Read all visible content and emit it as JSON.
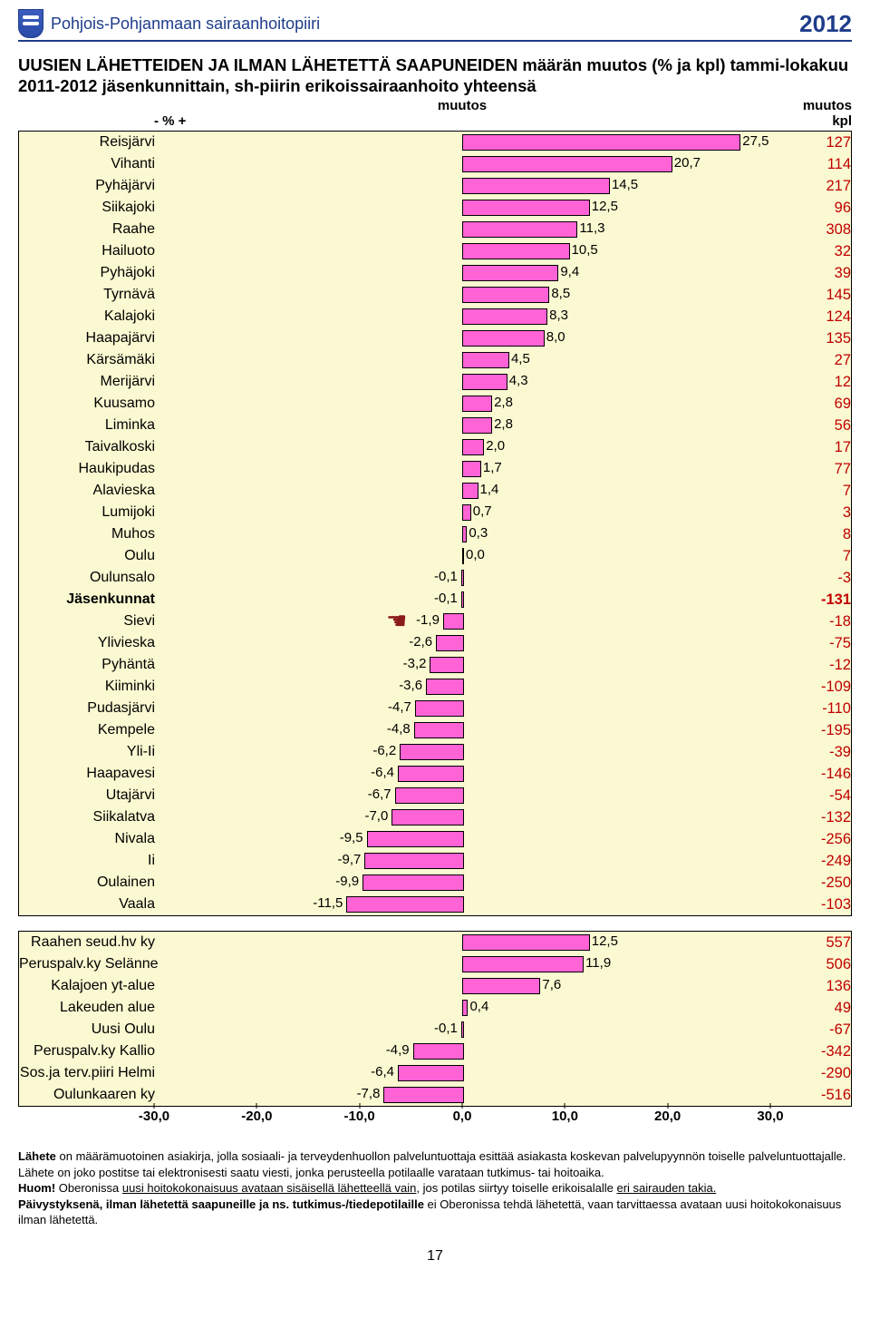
{
  "header": {
    "org": "Pohjois-Pohjanmaan sairaanhoitopiiri",
    "year": "2012"
  },
  "title": "UUSIEN LÄHETTEIDEN JA ILMAN LÄHETETTÄ SAAPUNEIDEN määrän muutos (% ja kpl) tammi-lokakuu 2011-2012 jäsenkunnittain, sh-piirin erikoissairaanhoito yhteensä",
  "columns": {
    "mid": "muutos",
    "pm": "-  %  +",
    "right": "muutos",
    "right2": "kpl"
  },
  "chart": {
    "xmin": -30,
    "xmax": 30,
    "xstep": 10,
    "ticks": [
      "-30,0",
      "-20,0",
      "-10,0",
      "0,0",
      "10,0",
      "20,0",
      "30,0"
    ],
    "bar_color": "#ff63d6",
    "plot_bg": "#fbf9d1",
    "border": "#000000",
    "kpl_color": "#c00000",
    "font_size": 16,
    "hand_row": 22
  },
  "rows": [
    {
      "label": "Reisjärvi",
      "v": 27.5,
      "vl": "27,5",
      "kpl": "127"
    },
    {
      "label": "Vihanti",
      "v": 20.7,
      "vl": "20,7",
      "kpl": "114"
    },
    {
      "label": "Pyhäjärvi",
      "v": 14.5,
      "vl": "14,5",
      "kpl": "217"
    },
    {
      "label": "Siikajoki",
      "v": 12.5,
      "vl": "12,5",
      "kpl": "96"
    },
    {
      "label": "Raahe",
      "v": 11.3,
      "vl": "11,3",
      "kpl": "308"
    },
    {
      "label": "Hailuoto",
      "v": 10.5,
      "vl": "10,5",
      "kpl": "32"
    },
    {
      "label": "Pyhäjoki",
      "v": 9.4,
      "vl": "9,4",
      "kpl": "39"
    },
    {
      "label": "Tyrnävä",
      "v": 8.5,
      "vl": "8,5",
      "kpl": "145"
    },
    {
      "label": "Kalajoki",
      "v": 8.3,
      "vl": "8,3",
      "kpl": "124"
    },
    {
      "label": "Haapajärvi",
      "v": 8.0,
      "vl": "8,0",
      "kpl": "135"
    },
    {
      "label": "Kärsämäki",
      "v": 4.5,
      "vl": "4,5",
      "kpl": "27"
    },
    {
      "label": "Merijärvi",
      "v": 4.3,
      "vl": "4,3",
      "kpl": "12"
    },
    {
      "label": "Kuusamo",
      "v": 2.8,
      "vl": "2,8",
      "kpl": "69"
    },
    {
      "label": "Liminka",
      "v": 2.8,
      "vl": "2,8",
      "kpl": "56"
    },
    {
      "label": "Taivalkoski",
      "v": 2.0,
      "vl": "2,0",
      "kpl": "17"
    },
    {
      "label": "Haukipudas",
      "v": 1.7,
      "vl": "1,7",
      "kpl": "77"
    },
    {
      "label": "Alavieska",
      "v": 1.4,
      "vl": "1,4",
      "kpl": "7"
    },
    {
      "label": "Lumijoki",
      "v": 0.7,
      "vl": "0,7",
      "kpl": "3"
    },
    {
      "label": "Muhos",
      "v": 0.3,
      "vl": "0,3",
      "kpl": "8"
    },
    {
      "label": "Oulu",
      "v": 0.0,
      "vl": "0,0",
      "kpl": "7"
    },
    {
      "label": "Oulunsalo",
      "v": -0.1,
      "vl": "-0,1",
      "kpl": "-3"
    },
    {
      "label": "Jäsenkunnat",
      "v": -0.1,
      "vl": "-0,1",
      "kpl": "-131",
      "bold": true
    },
    {
      "label": "Sievi",
      "v": -1.9,
      "vl": "-1,9",
      "kpl": "-18"
    },
    {
      "label": "Ylivieska",
      "v": -2.6,
      "vl": "-2,6",
      "kpl": "-75"
    },
    {
      "label": "Pyhäntä",
      "v": -3.2,
      "vl": "-3,2",
      "kpl": "-12"
    },
    {
      "label": "Kiiminki",
      "v": -3.6,
      "vl": "-3,6",
      "kpl": "-109"
    },
    {
      "label": "Pudasjärvi",
      "v": -4.7,
      "vl": "-4,7",
      "kpl": "-110"
    },
    {
      "label": "Kempele",
      "v": -4.8,
      "vl": "-4,8",
      "kpl": "-195"
    },
    {
      "label": "Yli-Ii",
      "v": -6.2,
      "vl": "-6,2",
      "kpl": "-39"
    },
    {
      "label": "Haapavesi",
      "v": -6.4,
      "vl": "-6,4",
      "kpl": "-146"
    },
    {
      "label": "Utajärvi",
      "v": -6.7,
      "vl": "-6,7",
      "kpl": "-54"
    },
    {
      "label": "Siikalatva",
      "v": -7.0,
      "vl": "-7,0",
      "kpl": "-132"
    },
    {
      "label": "Nivala",
      "v": -9.5,
      "vl": "-9,5",
      "kpl": "-256"
    },
    {
      "label": "Ii",
      "v": -9.7,
      "vl": "-9,7",
      "kpl": "-249"
    },
    {
      "label": "Oulainen",
      "v": -9.9,
      "vl": "-9,9",
      "kpl": "-250"
    },
    {
      "label": "Vaala",
      "v": -11.5,
      "vl": "-11,5",
      "kpl": "-103"
    }
  ],
  "rows2": [
    {
      "label": "Raahen seud.hv ky",
      "v": 12.5,
      "vl": "12,5",
      "kpl": "557"
    },
    {
      "label": "Peruspalv.ky Selänne",
      "v": 11.9,
      "vl": "11,9",
      "kpl": "506"
    },
    {
      "label": "Kalajoen yt-alue",
      "v": 7.6,
      "vl": "7,6",
      "kpl": "136"
    },
    {
      "label": "Lakeuden alue",
      "v": 0.4,
      "vl": "0,4",
      "kpl": "49"
    },
    {
      "label": "Uusi Oulu",
      "v": -0.1,
      "vl": "-0,1",
      "kpl": "-67"
    },
    {
      "label": "Peruspalv.ky Kallio",
      "v": -4.9,
      "vl": "-4,9",
      "kpl": "-342"
    },
    {
      "label": "Sos.ja terv.piiri Helmi",
      "v": -6.4,
      "vl": "-6,4",
      "kpl": "-290"
    },
    {
      "label": "Oulunkaaren ky",
      "v": -7.8,
      "vl": "-7,8",
      "kpl": "-516"
    }
  ],
  "footnote": {
    "p1a": "Lähete",
    "p1b": " on määrämuotoinen asiakirja, jolla sosiaali- ja terveydenhuollon palveluntuottaja esittää asiakasta koskevan palvelupyynnön toiselle palveluntuottajalle. Lähete on joko postitse tai elektronisesti saatu viesti, jonka perusteella potilaalle varataan tutkimus- tai hoitoaika.",
    "p2a": "Huom!",
    "p2b": " Oberonissa ",
    "p2u1": "uusi hoitokokonaisuus avataan sisäisellä lähetteellä vain",
    "p2c": ", jos potilas siirtyy toiselle erikoisalalle ",
    "p2u2": "eri sairauden takia.",
    "p3a": "Päivystyksenä, ilman lähetettä saapuneille ja ns. tutkimus-/tiedepotilaille",
    "p3b": " ei Oberonissa tehdä lähetettä, vaan tarvittaessa avataan uusi hoitokokonaisuus ilman lähetettä."
  },
  "pagenum": "17"
}
